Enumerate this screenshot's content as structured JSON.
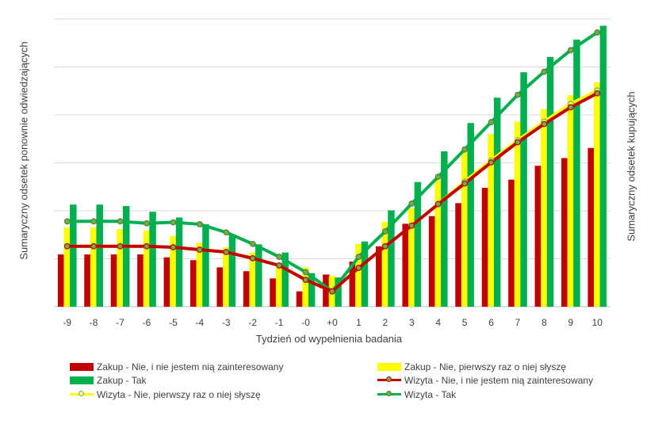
{
  "chart_data": {
    "type": "bar+line",
    "title": "",
    "xlabel": "Tydzień od wypełnienia badania",
    "ylabel_left": "Sumaryczny odsetek ponownie odwiedzających",
    "ylabel_right": "Sumaryczny odsetek kupujących",
    "categories": [
      "-9",
      "-8",
      "-7",
      "-6",
      "-5",
      "-4",
      "-3",
      "-2",
      "-1",
      "-0",
      "+0",
      "1",
      "2",
      "3",
      "4",
      "5",
      "6",
      "7",
      "8",
      "9",
      "10"
    ],
    "ylim": [
      0,
      6
    ],
    "grid": true,
    "legend_position": "bottom",
    "bar_series": [
      {
        "name": "Zakup - Nie, i nie jestem nią zainteresowany",
        "color": "#C00000",
        "values": [
          1.09,
          1.09,
          1.09,
          1.09,
          1.03,
          0.97,
          0.82,
          0.74,
          0.59,
          0.32,
          0.67,
          0.94,
          1.26,
          1.73,
          1.89,
          2.16,
          2.48,
          2.65,
          2.94,
          3.1,
          3.31
        ]
      },
      {
        "name": "Zakup - Nie, pierwszy raz o niej słyszę",
        "color": "#FFFF00",
        "values": [
          1.65,
          1.65,
          1.62,
          1.59,
          1.47,
          1.33,
          1.24,
          1.13,
          0.88,
          0.82,
          0.64,
          1.31,
          1.77,
          2.05,
          2.64,
          3.22,
          3.6,
          3.86,
          4.12,
          4.41,
          4.68
        ]
      },
      {
        "name": "Zakup - Tak",
        "color": "#00B050",
        "values": [
          2.13,
          2.13,
          2.1,
          1.98,
          1.86,
          1.72,
          1.51,
          1.3,
          1.13,
          0.7,
          0.61,
          1.36,
          2.01,
          2.6,
          3.24,
          3.83,
          4.36,
          4.89,
          5.21,
          5.57,
          5.86
        ]
      }
    ],
    "line_series": [
      {
        "name": "Wizyta - Nie, i nie jestem nią zainteresowany",
        "color": "#C00000",
        "marker_fill": "#70AD47",
        "values": [
          1.26,
          1.26,
          1.26,
          1.26,
          1.24,
          1.19,
          1.14,
          1.01,
          0.86,
          0.56,
          0.32,
          0.81,
          1.26,
          1.69,
          2.14,
          2.57,
          3.01,
          3.43,
          3.81,
          4.16,
          4.45
        ]
      },
      {
        "name": "Wizyta - Nie, pierwszy raz o niej słyszę",
        "color": "#FFFF00",
        "marker_fill": "#FFFF66",
        "values": [
          1.26,
          1.26,
          1.26,
          1.26,
          1.24,
          1.19,
          1.14,
          1.01,
          0.86,
          0.56,
          0.32,
          0.81,
          1.26,
          1.69,
          2.14,
          2.61,
          3.05,
          3.47,
          3.86,
          4.23,
          4.51
        ]
      },
      {
        "name": "Wizyta - Tak",
        "color": "#00B050",
        "marker_fill": "#70AD47",
        "values": [
          1.78,
          1.78,
          1.78,
          1.74,
          1.76,
          1.72,
          1.55,
          1.31,
          1.04,
          0.72,
          0.32,
          1.04,
          1.57,
          2.15,
          2.71,
          3.28,
          3.85,
          4.42,
          4.9,
          5.35,
          5.72
        ]
      }
    ]
  }
}
